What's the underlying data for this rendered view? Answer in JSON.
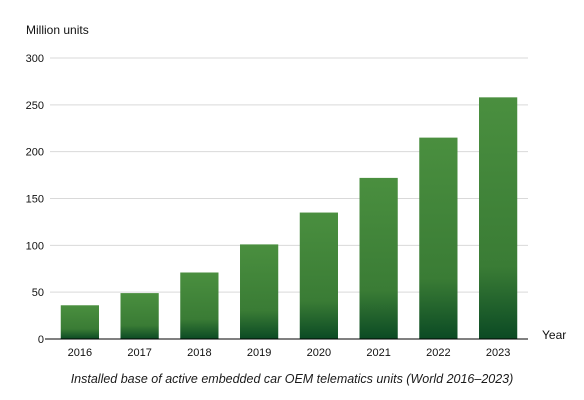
{
  "chart_data": {
    "type": "bar",
    "categories": [
      "2016",
      "2017",
      "2018",
      "2019",
      "2020",
      "2021",
      "2022",
      "2023"
    ],
    "values": [
      36,
      49,
      71,
      101,
      135,
      172,
      215,
      258
    ],
    "ylabel": "Million units",
    "xlabel": "Year",
    "ylim": [
      0,
      300
    ],
    "yticks": [
      "0",
      "50",
      "100",
      "150",
      "200",
      "250",
      "300"
    ],
    "grid": true,
    "caption": "Installed base of active embedded car OEM telematics units (World 2016–2023)",
    "colors": {
      "bar_top": "#4a8f3f",
      "bar_bottom": "#0b4a24",
      "grid": "#d9d9d9",
      "axis": "#000000"
    }
  }
}
